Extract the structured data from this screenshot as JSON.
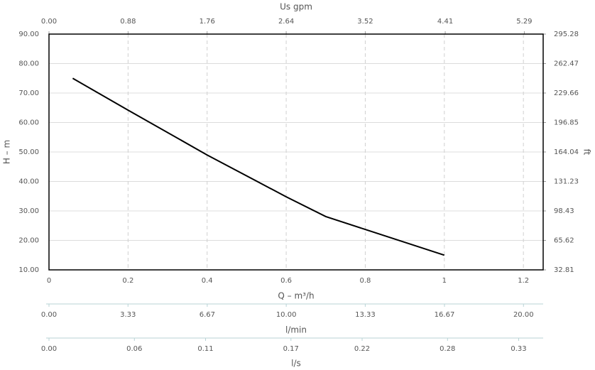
{
  "chart_data": {
    "type": "line",
    "xlabel": "Q – m³/h",
    "ylabel": "H – m",
    "y2label": "ft",
    "x": [
      0.06,
      0.2,
      0.4,
      0.6,
      0.7,
      0.8,
      1.0
    ],
    "values": [
      75,
      64.2,
      49,
      34.8,
      28.1,
      23.7,
      15
    ],
    "color": "#000000",
    "grid": true,
    "xlim": [
      0,
      1.25
    ],
    "xticks": [
      0,
      0.2,
      0.4,
      0.6,
      0.8,
      1,
      1.2
    ],
    "ylim": [
      10,
      90
    ],
    "yticks": [
      {
        "value": 10,
        "label": "10.00"
      },
      {
        "value": 20,
        "label": "20.00"
      },
      {
        "value": 30,
        "label": "30.00"
      },
      {
        "value": 40,
        "label": "40.00"
      },
      {
        "value": 50,
        "label": "50.00"
      },
      {
        "value": 60,
        "label": "60.00"
      },
      {
        "value": 70,
        "label": "70.00"
      },
      {
        "value": 80,
        "label": "80.00"
      },
      {
        "value": 90,
        "label": "90.00"
      }
    ],
    "y2lim": [
      32.81,
      295.28
    ],
    "y2ticks": [
      32.81,
      65.62,
      98.43,
      131.23,
      164.04,
      196.85,
      229.66,
      262.47,
      295.28
    ],
    "top_axis": {
      "label": "Us gpm",
      "lim": [
        0,
        5.5
      ],
      "ticks": [
        {
          "value": 0,
          "label": "0.00"
        },
        0.88,
        1.76,
        2.64,
        3.52,
        4.41,
        5.29
      ]
    },
    "extra_axes": [
      {
        "label": "l/min",
        "lim": [
          0,
          20.83
        ],
        "ticks": [
          {
            "value": 0,
            "label": "0.00"
          },
          3.33,
          6.67,
          {
            "value": 10,
            "label": "10.00"
          },
          13.33,
          16.67,
          {
            "value": 20,
            "label": "20.00"
          }
        ]
      },
      {
        "label": "l/s",
        "lim": [
          0,
          0.3472
        ],
        "ticks": [
          {
            "value": 0,
            "label": "0.00"
          },
          0.06,
          0.11,
          0.17,
          0.22,
          0.28,
          0.33
        ]
      }
    ]
  }
}
